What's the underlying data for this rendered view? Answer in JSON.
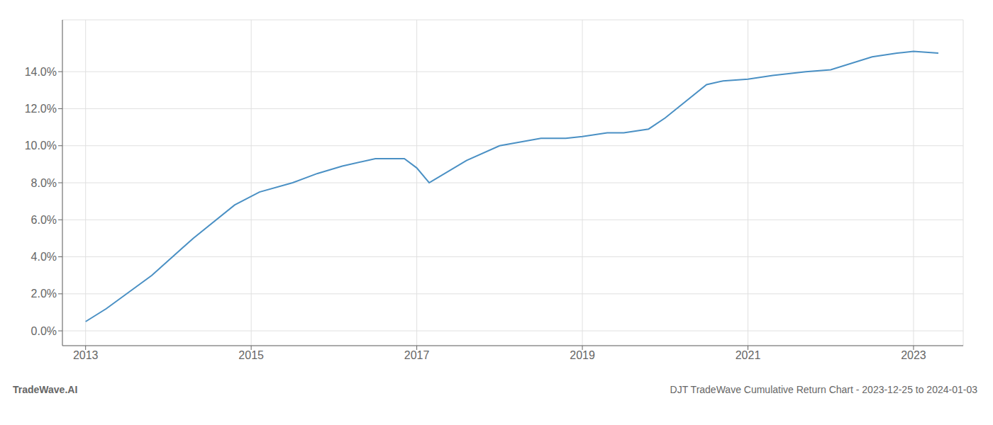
{
  "chart_data": {
    "type": "line",
    "title": "DJT TradeWave Cumulative Return Chart - 2023-12-25 to 2024-01-03",
    "annotations": [
      "TradeWave.AI"
    ],
    "x": [
      2013.0,
      2013.25,
      2013.8,
      2014.3,
      2014.8,
      2015.1,
      2015.5,
      2015.8,
      2016.1,
      2016.5,
      2016.85,
      2017.0,
      2017.15,
      2017.6,
      2018.0,
      2018.5,
      2018.8,
      2019.0,
      2019.3,
      2019.5,
      2019.8,
      2020.0,
      2020.5,
      2020.7,
      2021.0,
      2021.3,
      2021.7,
      2022.0,
      2022.5,
      2022.8,
      2023.0,
      2023.3
    ],
    "values": [
      0.005,
      0.012,
      0.03,
      0.05,
      0.068,
      0.075,
      0.08,
      0.085,
      0.089,
      0.093,
      0.093,
      0.088,
      0.08,
      0.092,
      0.1,
      0.104,
      0.104,
      0.105,
      0.107,
      0.107,
      0.109,
      0.115,
      0.133,
      0.135,
      0.136,
      0.138,
      0.14,
      0.141,
      0.148,
      0.15,
      0.151,
      0.15
    ],
    "color": "#4a90c4",
    "xlim": [
      2012.72,
      2023.6
    ],
    "xticks": [
      2013,
      2015,
      2017,
      2019,
      2021,
      2023
    ],
    "ylim": [
      -0.008,
      0.168
    ],
    "yticks": [
      {
        "value": 0.0,
        "label": "0.0%"
      },
      {
        "value": 0.02,
        "label": "2.0%"
      },
      {
        "value": 0.04,
        "label": "4.0%"
      },
      {
        "value": 0.06,
        "label": "6.0%"
      },
      {
        "value": 0.08,
        "label": "8.0%"
      },
      {
        "value": 0.1,
        "label": "10.0%"
      },
      {
        "value": 0.12,
        "label": "12.0%"
      },
      {
        "value": 0.14,
        "label": "14.0%"
      }
    ],
    "grid": true
  }
}
